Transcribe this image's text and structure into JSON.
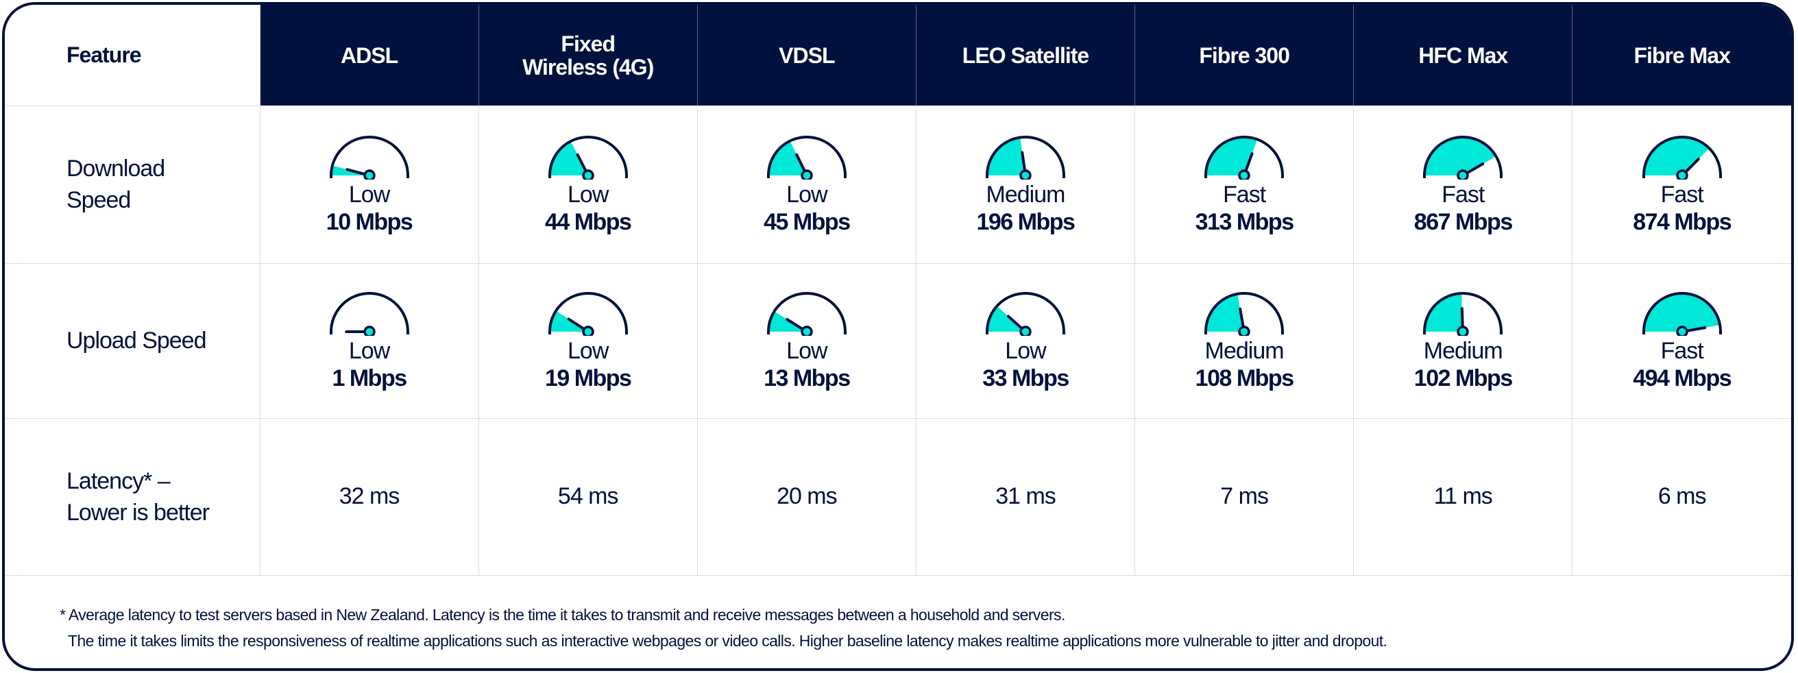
{
  "colors": {
    "navy": "#00113d",
    "teal": "#00e8d7",
    "grid": "#dcdcdc",
    "white": "#ffffff"
  },
  "table": {
    "feature_header": "Feature",
    "columns": [
      {
        "line1": "ADSL",
        "line2": ""
      },
      {
        "line1": "Fixed",
        "line2": "Wireless (4G)"
      },
      {
        "line1": "VDSL",
        "line2": ""
      },
      {
        "line1": "LEO Satellite",
        "line2": ""
      },
      {
        "line1": "Fibre 300",
        "line2": ""
      },
      {
        "line1": "HFC Max",
        "line2": ""
      },
      {
        "line1": "Fibre Max",
        "line2": ""
      }
    ],
    "rows": {
      "download": {
        "label_line1": "Download",
        "label_line2": "Speed",
        "cells": [
          {
            "rating": "Low",
            "speed": "10 Mbps",
            "gauge_angle": 15
          },
          {
            "rating": "Low",
            "speed": "44 Mbps",
            "gauge_angle": 63
          },
          {
            "rating": "Low",
            "speed": "45 Mbps",
            "gauge_angle": 64
          },
          {
            "rating": "Medium",
            "speed": "196 Mbps",
            "gauge_angle": 82
          },
          {
            "rating": "Fast",
            "speed": "313 Mbps",
            "gauge_angle": 110
          },
          {
            "rating": "Fast",
            "speed": "867 Mbps",
            "gauge_angle": 150
          },
          {
            "rating": "Fast",
            "speed": "874 Mbps",
            "gauge_angle": 135
          }
        ]
      },
      "upload": {
        "label_line1": "Upload Speed",
        "label_line2": "",
        "cells": [
          {
            "rating": "Low",
            "speed": "1 Mbps",
            "gauge_angle": 0
          },
          {
            "rating": "Low",
            "speed": "19 Mbps",
            "gauge_angle": 33
          },
          {
            "rating": "Low",
            "speed": "13 Mbps",
            "gauge_angle": 32
          },
          {
            "rating": "Low",
            "speed": "33 Mbps",
            "gauge_angle": 42
          },
          {
            "rating": "Medium",
            "speed": "108 Mbps",
            "gauge_angle": 80
          },
          {
            "rating": "Medium",
            "speed": "102 Mbps",
            "gauge_angle": 88
          },
          {
            "rating": "Fast",
            "speed": "494 Mbps",
            "gauge_angle": 170
          }
        ]
      },
      "latency": {
        "label_line1": "Latency* –",
        "label_line2": "Lower is better",
        "cells": [
          "32 ms",
          "54 ms",
          "20 ms",
          "31 ms",
          "7 ms",
          "11 ms",
          "6 ms"
        ]
      }
    }
  },
  "footer": {
    "line1": "* Average latency to test servers based in New Zealand.  Latency is the time it takes to transmit and receive messages between a household and servers.",
    "line2": "The time it takes limits the responsiveness of realtime applications such as interactive webpages or video calls.  Higher baseline latency makes realtime applications more vulnerable to jitter and dropout."
  }
}
